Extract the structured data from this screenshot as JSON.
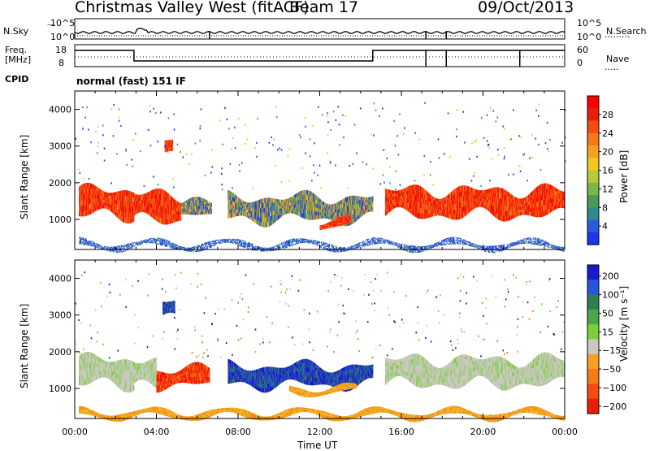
{
  "header": {
    "station": "Christmas Valley West (fitACF)",
    "beam": "Beam 17",
    "date": "09/Oct/2013"
  },
  "param_panels": {
    "nsky": {
      "label": "N.Sky",
      "ticks": [
        "10^5",
        "10^0"
      ]
    },
    "nsearch": {
      "label": "N.Search",
      "ticks": [
        "10^5",
        "10^0"
      ]
    },
    "freq": {
      "label_line1": "Freq.",
      "label_line2": "[MHz]",
      "ticks": [
        "18",
        "8"
      ]
    },
    "nave": {
      "label": "Nave",
      "ticks": [
        "60",
        "0"
      ]
    },
    "cpid": {
      "label": "CPID",
      "value": "normal (fast) 151 IF"
    }
  },
  "chart_data": [
    {
      "type": "heatmap",
      "panel": "power",
      "ylabel": "Slant Range [km]",
      "xlabel": "Time UT",
      "x_ticks": [
        "00:00",
        "04:00",
        "08:00",
        "12:00",
        "16:00",
        "20:00",
        "00:00"
      ],
      "y_ticks": [
        1000,
        2000,
        3000,
        4000
      ],
      "ylim": [
        180,
        4500
      ],
      "xlim_hours": [
        0,
        24
      ],
      "colorbar": {
        "label": "Power [dB]",
        "ticks": [
          4,
          8,
          12,
          16,
          20,
          24,
          28
        ],
        "colors": [
          "#1f35e8",
          "#2b5bd8",
          "#2f8a8a",
          "#4a9a5a",
          "#7ab84a",
          "#b4cc3a",
          "#f0c820",
          "#f5a020",
          "#f57a18",
          "#f24c10",
          "#e81e0a",
          "#ff0000"
        ]
      },
      "regions": [
        {
          "t0": 0.2,
          "t1": 2.9,
          "r0": 1000,
          "r1": 1900,
          "level": "high"
        },
        {
          "t0": 2.9,
          "t1": 5.2,
          "r0": 850,
          "r1": 1800,
          "level": "high"
        },
        {
          "t0": 5.2,
          "t1": 6.7,
          "r0": 1000,
          "r1": 1500,
          "level": "medium"
        },
        {
          "t0": 4.4,
          "t1": 4.8,
          "r0": 2600,
          "r1": 3200,
          "level": "high"
        },
        {
          "t0": 7.5,
          "t1": 14.6,
          "r0": 900,
          "r1": 1700,
          "level": "medium"
        },
        {
          "t0": 12.0,
          "t1": 13.5,
          "r0": 750,
          "r1": 1000,
          "level": "high"
        },
        {
          "t0": 15.2,
          "t1": 24.0,
          "r0": 1000,
          "r1": 1900,
          "level": "high"
        },
        {
          "t0": 0.2,
          "t1": 24.0,
          "r0": 200,
          "r1": 400,
          "level": "low"
        }
      ]
    },
    {
      "type": "heatmap",
      "panel": "velocity",
      "ylabel": "Slant Range [km]",
      "xlabel": "Time UT",
      "x_ticks": [
        "00:00",
        "04:00",
        "08:00",
        "12:00",
        "16:00",
        "20:00",
        "00:00"
      ],
      "y_ticks": [
        1000,
        2000,
        3000,
        4000
      ],
      "ylim": [
        180,
        4500
      ],
      "xlim_hours": [
        0,
        24
      ],
      "colorbar": {
        "label": "Velocity [m s⁻¹]",
        "ticks": [
          200,
          100,
          50,
          15,
          -15,
          -50,
          -100,
          -200
        ],
        "colors": [
          "#1a1acc",
          "#2a55d8",
          "#2e7f50",
          "#4aa84a",
          "#7ccf3a",
          "#c8c8c0",
          "#f5a020",
          "#f57a18",
          "#f24c10",
          "#e81e0a"
        ]
      },
      "regions": [
        {
          "t0": 0.2,
          "t1": 2.9,
          "r0": 1000,
          "r1": 1900,
          "level": "gray"
        },
        {
          "t0": 2.9,
          "t1": 4.0,
          "r0": 900,
          "r1": 1800,
          "level": "gray"
        },
        {
          "t0": 4.0,
          "t1": 6.6,
          "r0": 1000,
          "r1": 1600,
          "level": "red"
        },
        {
          "t0": 4.3,
          "t1": 4.9,
          "r0": 2800,
          "r1": 3400,
          "level": "blue"
        },
        {
          "t0": 7.5,
          "t1": 14.6,
          "r0": 1000,
          "r1": 1700,
          "level": "blue"
        },
        {
          "t0": 10.5,
          "t1": 13.8,
          "r0": 850,
          "r1": 1050,
          "level": "orange"
        },
        {
          "t0": 15.2,
          "t1": 24.0,
          "r0": 1000,
          "r1": 1900,
          "level": "gray"
        },
        {
          "t0": 0.2,
          "t1": 24.0,
          "r0": 200,
          "r1": 400,
          "level": "orange"
        }
      ]
    }
  ],
  "axis": {
    "xlabel": "Time UT",
    "ylabel": "Slant Range [km]"
  }
}
